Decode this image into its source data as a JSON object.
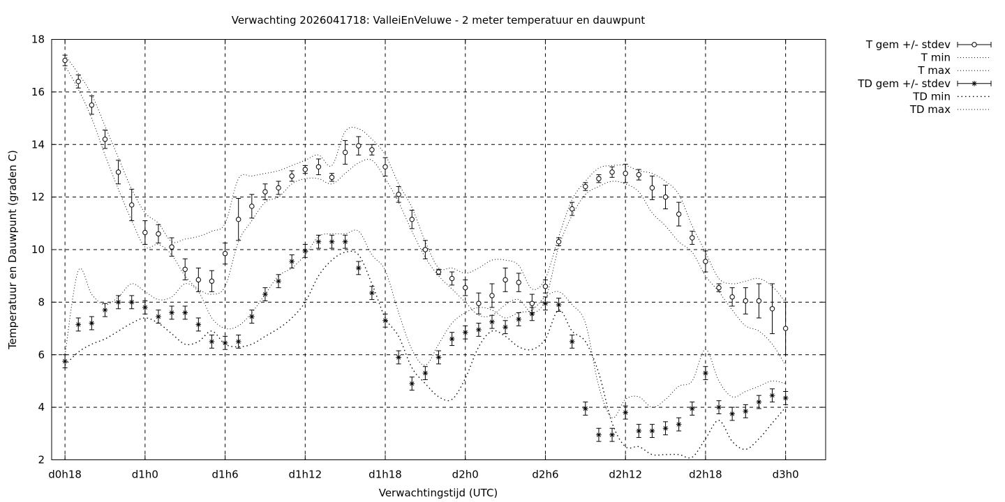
{
  "chart_data": {
    "type": "line",
    "title": "Verwachting 2026041718: ValleiEnVeluwe - 2 meter temperatuur en dauwpunt",
    "xlabel": "Verwachtingstijd (UTC)",
    "ylabel": "Temperatuur en Dauwpunt (graden C)",
    "ylim": [
      2,
      18
    ],
    "yticks": [
      2,
      4,
      6,
      8,
      10,
      12,
      14,
      16,
      18
    ],
    "xlim_hours": [
      18,
      74
    ],
    "xticks": [
      {
        "hour": 18,
        "label": "d0h18"
      },
      {
        "hour": 24,
        "label": "d1h0"
      },
      {
        "hour": 30,
        "label": "d1h6"
      },
      {
        "hour": 36,
        "label": "d1h12"
      },
      {
        "hour": 42,
        "label": "d1h18"
      },
      {
        "hour": 48,
        "label": "d2h0"
      },
      {
        "hour": 54,
        "label": "d2h6"
      },
      {
        "hour": 60,
        "label": "d2h12"
      },
      {
        "hour": 66,
        "label": "d2h18"
      },
      {
        "hour": 72,
        "label": "d3h0"
      }
    ],
    "grid": true,
    "legend_position": "outside-top-right",
    "legend": [
      {
        "label": "T gem +/- stdev",
        "style": "errorbar-circle"
      },
      {
        "label": "T min",
        "style": "dotted"
      },
      {
        "label": "T max",
        "style": "dotted"
      },
      {
        "label": "TD gem +/- stdev",
        "style": "errorbar-star"
      },
      {
        "label": "TD min",
        "style": "dotted-coarse"
      },
      {
        "label": "TD max",
        "style": "dotted"
      }
    ],
    "x_hours": [
      18,
      19,
      20,
      21,
      22,
      23,
      24,
      25,
      26,
      27,
      28,
      29,
      30,
      31,
      32,
      33,
      34,
      35,
      36,
      37,
      38,
      39,
      40,
      41,
      42,
      43,
      44,
      45,
      46,
      47,
      48,
      49,
      50,
      51,
      52,
      53,
      54,
      55,
      56,
      57,
      58,
      59,
      60,
      61,
      62,
      63,
      64,
      65,
      66,
      67,
      68,
      69,
      70,
      71,
      72
    ],
    "series": [
      {
        "name": "T gem +/- stdev",
        "marker": "circle",
        "mean": [
          17.2,
          16.4,
          15.5,
          14.2,
          12.95,
          11.7,
          10.65,
          10.6,
          10.1,
          9.25,
          8.85,
          8.8,
          9.85,
          11.15,
          11.65,
          12.2,
          12.35,
          12.8,
          13.05,
          13.15,
          12.75,
          13.7,
          13.95,
          13.8,
          13.15,
          12.1,
          11.15,
          10.0,
          9.15,
          8.9,
          8.55,
          7.95,
          8.25,
          8.85,
          8.75,
          7.95,
          8.6,
          10.3,
          11.55,
          12.4,
          12.7,
          12.95,
          12.9,
          12.85,
          12.35,
          12.0,
          11.35,
          10.45,
          9.55,
          8.55,
          8.2,
          8.05,
          8.05,
          7.75,
          7.0
        ],
        "stdev": [
          0.2,
          0.25,
          0.35,
          0.35,
          0.45,
          0.6,
          0.45,
          0.35,
          0.35,
          0.4,
          0.45,
          0.4,
          0.4,
          0.8,
          0.45,
          0.3,
          0.25,
          0.2,
          0.15,
          0.3,
          0.15,
          0.45,
          0.35,
          0.2,
          0.35,
          0.3,
          0.35,
          0.35,
          0.1,
          0.25,
          0.3,
          0.4,
          0.45,
          0.45,
          0.35,
          0.35,
          0.25,
          0.15,
          0.25,
          0.15,
          0.15,
          0.2,
          0.35,
          0.2,
          0.45,
          0.45,
          0.45,
          0.25,
          0.4,
          0.15,
          0.35,
          0.5,
          0.65,
          0.95,
          1.0
        ]
      },
      {
        "name": "T min",
        "values": [
          17.0,
          16.1,
          15.0,
          13.6,
          12.3,
          11.1,
          10.1,
          10.2,
          9.8,
          9.0,
          8.5,
          8.3,
          8.6,
          10.3,
          11.1,
          11.8,
          12.0,
          12.5,
          12.7,
          12.7,
          12.5,
          12.9,
          13.3,
          13.4,
          12.7,
          11.8,
          10.7,
          9.7,
          9.0,
          8.5,
          8.0,
          7.5,
          7.5,
          7.9,
          8.1,
          7.6,
          8.1,
          10.1,
          11.3,
          12.1,
          12.4,
          12.6,
          12.5,
          12.2,
          11.4,
          10.9,
          10.3,
          9.9,
          9.0,
          8.4,
          7.7,
          7.1,
          6.9,
          6.4,
          5.6
        ]
      },
      {
        "name": "T max",
        "values": [
          17.4,
          16.7,
          15.9,
          14.7,
          13.5,
          12.3,
          11.4,
          11.0,
          10.3,
          10.4,
          10.5,
          10.7,
          11.0,
          12.7,
          12.8,
          12.9,
          13.0,
          13.2,
          13.4,
          13.6,
          13.2,
          14.5,
          14.6,
          14.2,
          13.6,
          12.5,
          11.6,
          10.3,
          9.3,
          9.3,
          9.1,
          9.3,
          9.6,
          9.6,
          9.4,
          8.5,
          8.9,
          10.5,
          11.9,
          12.6,
          13.1,
          13.2,
          13.2,
          13.0,
          12.9,
          12.6,
          12.1,
          10.9,
          9.9,
          8.9,
          8.7,
          8.8,
          8.9,
          8.6,
          8.0
        ]
      },
      {
        "name": "TD gem +/- stdev",
        "marker": "star",
        "mean": [
          5.75,
          7.15,
          7.2,
          7.7,
          8.0,
          8.0,
          7.8,
          7.45,
          7.6,
          7.6,
          7.15,
          6.5,
          6.45,
          6.5,
          7.45,
          8.3,
          8.8,
          9.55,
          9.95,
          10.3,
          10.3,
          10.3,
          9.3,
          8.35,
          7.3,
          5.9,
          4.9,
          5.3,
          5.9,
          6.6,
          6.85,
          6.95,
          7.25,
          7.05,
          7.35,
          7.55,
          7.95,
          7.9,
          6.5,
          3.95,
          2.95,
          2.95,
          3.8,
          3.1,
          3.1,
          3.2,
          3.35,
          3.95,
          5.3,
          4.0,
          3.75,
          3.85,
          4.2,
          4.45,
          4.35
        ]
      },
      {
        "name": "TD min",
        "values": [
          5.6,
          6.1,
          6.4,
          6.6,
          6.9,
          7.2,
          7.4,
          7.2,
          6.8,
          6.4,
          6.5,
          6.9,
          6.4,
          6.3,
          6.4,
          6.7,
          7.0,
          7.4,
          8.0,
          9.0,
          9.6,
          9.9,
          9.8,
          8.7,
          7.4,
          6.7,
          5.5,
          4.9,
          4.4,
          4.3,
          5.1,
          6.3,
          6.9,
          6.7,
          6.3,
          6.2,
          6.6,
          7.7,
          6.9,
          6.5,
          5.3,
          3.4,
          2.5,
          2.5,
          2.2,
          2.2,
          2.2,
          2.1,
          2.8,
          3.5,
          2.7,
          2.4,
          2.8,
          3.4,
          4.0
        ]
      },
      {
        "name": "TD max",
        "values": [
          6.0,
          9.2,
          8.3,
          7.9,
          8.2,
          8.7,
          8.4,
          8.1,
          8.2,
          8.7,
          8.4,
          7.4,
          7.0,
          7.1,
          7.6,
          8.3,
          9.0,
          9.3,
          9.8,
          10.5,
          10.6,
          10.6,
          10.7,
          9.8,
          9.2,
          7.6,
          6.2,
          5.6,
          6.4,
          7.2,
          7.6,
          7.8,
          7.7,
          7.4,
          7.6,
          7.7,
          8.2,
          8.4,
          7.9,
          7.2,
          4.8,
          3.6,
          4.3,
          4.4,
          4.0,
          4.3,
          4.8,
          5.0,
          6.2,
          5.0,
          4.4,
          4.6,
          4.8,
          5.0,
          4.9
        ]
      }
    ]
  }
}
